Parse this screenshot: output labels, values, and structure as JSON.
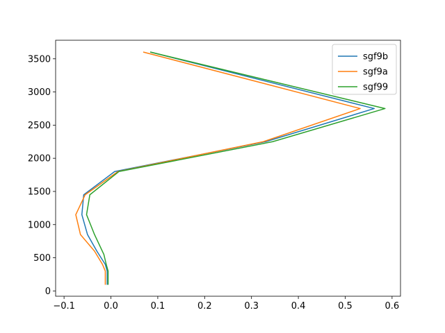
{
  "chart_data": {
    "type": "line",
    "title": "",
    "xlabel": "",
    "ylabel": "",
    "xlim": [
      -0.118,
      0.618
    ],
    "ylim": [
      -80,
      3780
    ],
    "xticks": [
      -0.1,
      0.0,
      0.1,
      0.2,
      0.3,
      0.4,
      0.5,
      0.6
    ],
    "xtick_labels": [
      "−0.1",
      "0.0",
      "0.1",
      "0.2",
      "0.3",
      "0.4",
      "0.5",
      "0.6"
    ],
    "yticks": [
      0,
      500,
      1000,
      1500,
      2000,
      2500,
      3000,
      3500
    ],
    "ytick_labels": [
      "0",
      "500",
      "1000",
      "1500",
      "2000",
      "2500",
      "3000",
      "3500"
    ],
    "grid": false,
    "legend_position": "top-right",
    "series": [
      {
        "name": "sgf9b",
        "color": "#1f77b4",
        "x": [
          -0.008,
          -0.008,
          -0.012,
          -0.03,
          -0.05,
          -0.062,
          -0.058,
          0.008,
          0.33,
          0.562,
          0.085
        ],
        "y": [
          100,
          300,
          400,
          600,
          850,
          1150,
          1450,
          1800,
          2250,
          2750,
          3600
        ]
      },
      {
        "name": "sgf9a",
        "color": "#ff7f0e",
        "x": [
          -0.012,
          -0.012,
          -0.018,
          -0.035,
          -0.065,
          -0.075,
          -0.055,
          0.015,
          0.325,
          0.532,
          0.07
        ],
        "y": [
          100,
          300,
          400,
          600,
          850,
          1150,
          1450,
          1800,
          2250,
          2750,
          3600
        ]
      },
      {
        "name": "sgf99",
        "color": "#2ca02c",
        "x": [
          -0.006,
          -0.006,
          -0.01,
          -0.015,
          -0.035,
          -0.052,
          -0.045,
          0.017,
          0.345,
          0.585,
          0.085
        ],
        "y": [
          100,
          300,
          400,
          550,
          850,
          1150,
          1450,
          1800,
          2250,
          2750,
          3600
        ]
      }
    ]
  }
}
